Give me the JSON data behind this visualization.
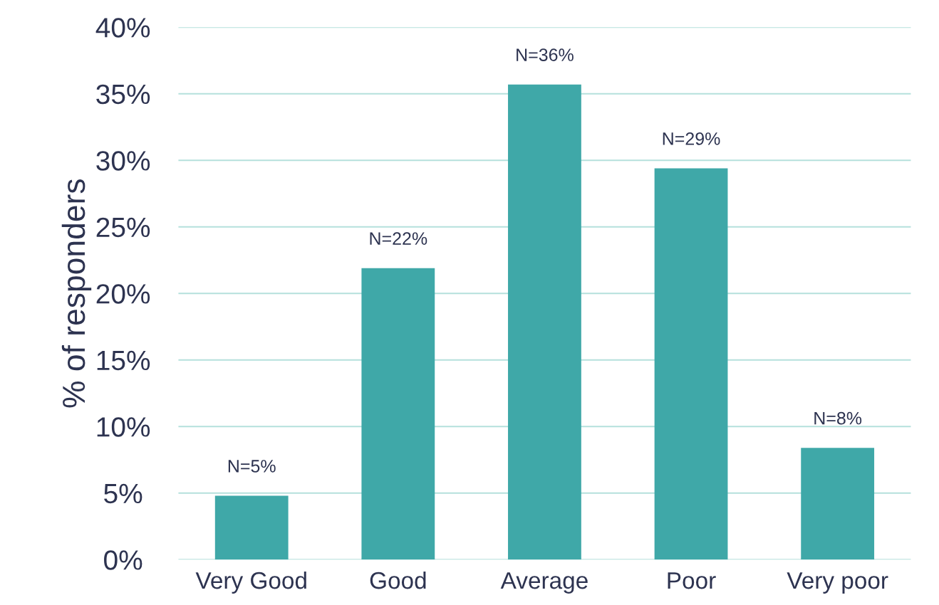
{
  "chart_data": {
    "type": "bar",
    "ylabel": "% of responders",
    "categories": [
      "Very Good",
      "Good",
      "Average",
      "Poor",
      "Very poor"
    ],
    "values": [
      4.8,
      21.9,
      35.7,
      29.4,
      8.4
    ],
    "value_labels": [
      "N=5%",
      "N=22%",
      "N=36%",
      "N=29%",
      "N=8%"
    ],
    "color": "#3fa8a8",
    "ylim": [
      0,
      40
    ],
    "yticks": [
      {
        "value": 0,
        "label": "0%"
      },
      {
        "value": 5,
        "label": "5%"
      },
      {
        "value": 10,
        "label": "10%"
      },
      {
        "value": 15,
        "label": "15%"
      },
      {
        "value": 20,
        "label": "20%"
      },
      {
        "value": 25,
        "label": "25%"
      },
      {
        "value": 30,
        "label": "30%"
      },
      {
        "value": 35,
        "label": "35%"
      },
      {
        "value": 40,
        "label": "40%"
      }
    ],
    "grid": "y",
    "legend": false
  }
}
